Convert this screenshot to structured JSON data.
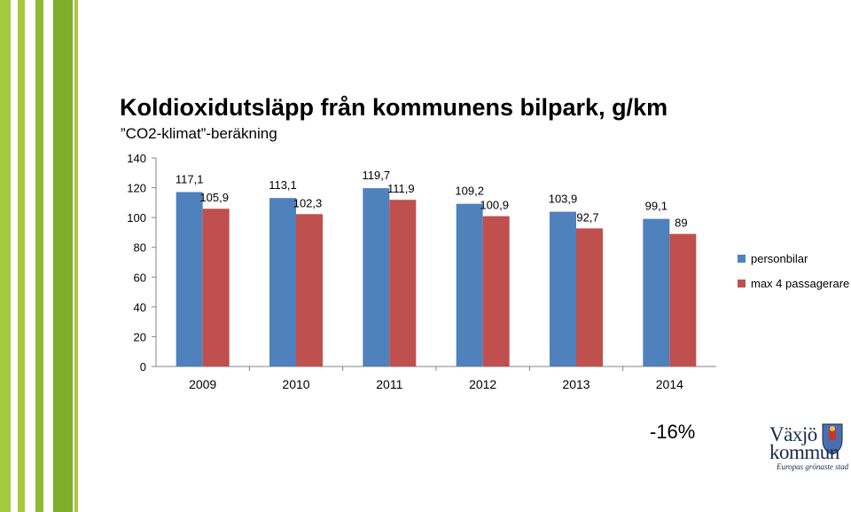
{
  "heading": {
    "title": "Koldioxidutsläpp från kommunens bilpark, g/km",
    "subtitle": "”CO2-klimat”-beräkning"
  },
  "change_label": "-16%",
  "logo": {
    "line1": "Växjö",
    "line2": "kommun",
    "tagline": "Europas grönaste stad"
  },
  "colors": {
    "stripe_light": "#a6c93e",
    "stripe_dark": "#7fae2a",
    "series_blue": "#4f81bd",
    "series_red": "#c0504d"
  },
  "chart_data": {
    "type": "bar",
    "categories": [
      "2009",
      "2010",
      "2011",
      "2012",
      "2013",
      "2014"
    ],
    "series": [
      {
        "name": "personbilar",
        "values": [
          117.1,
          113.1,
          119.7,
          109.2,
          103.9,
          99.1
        ],
        "labels": [
          "117,1",
          "113,1",
          "119,7",
          "109,2",
          "103,9",
          "99,1"
        ],
        "color": "#4f81bd"
      },
      {
        "name": "max 4 passagerare",
        "values": [
          105.9,
          102.3,
          111.9,
          100.9,
          92.7,
          89
        ],
        "labels": [
          "105,9",
          "102,3",
          "111,9",
          "100,9",
          "92,7",
          "89"
        ],
        "color": "#c0504d"
      }
    ],
    "ylim": [
      0,
      140
    ],
    "yticks": [
      "0",
      "20",
      "40",
      "60",
      "80",
      "100",
      "120",
      "140"
    ],
    "legend": "right",
    "grid": false
  }
}
